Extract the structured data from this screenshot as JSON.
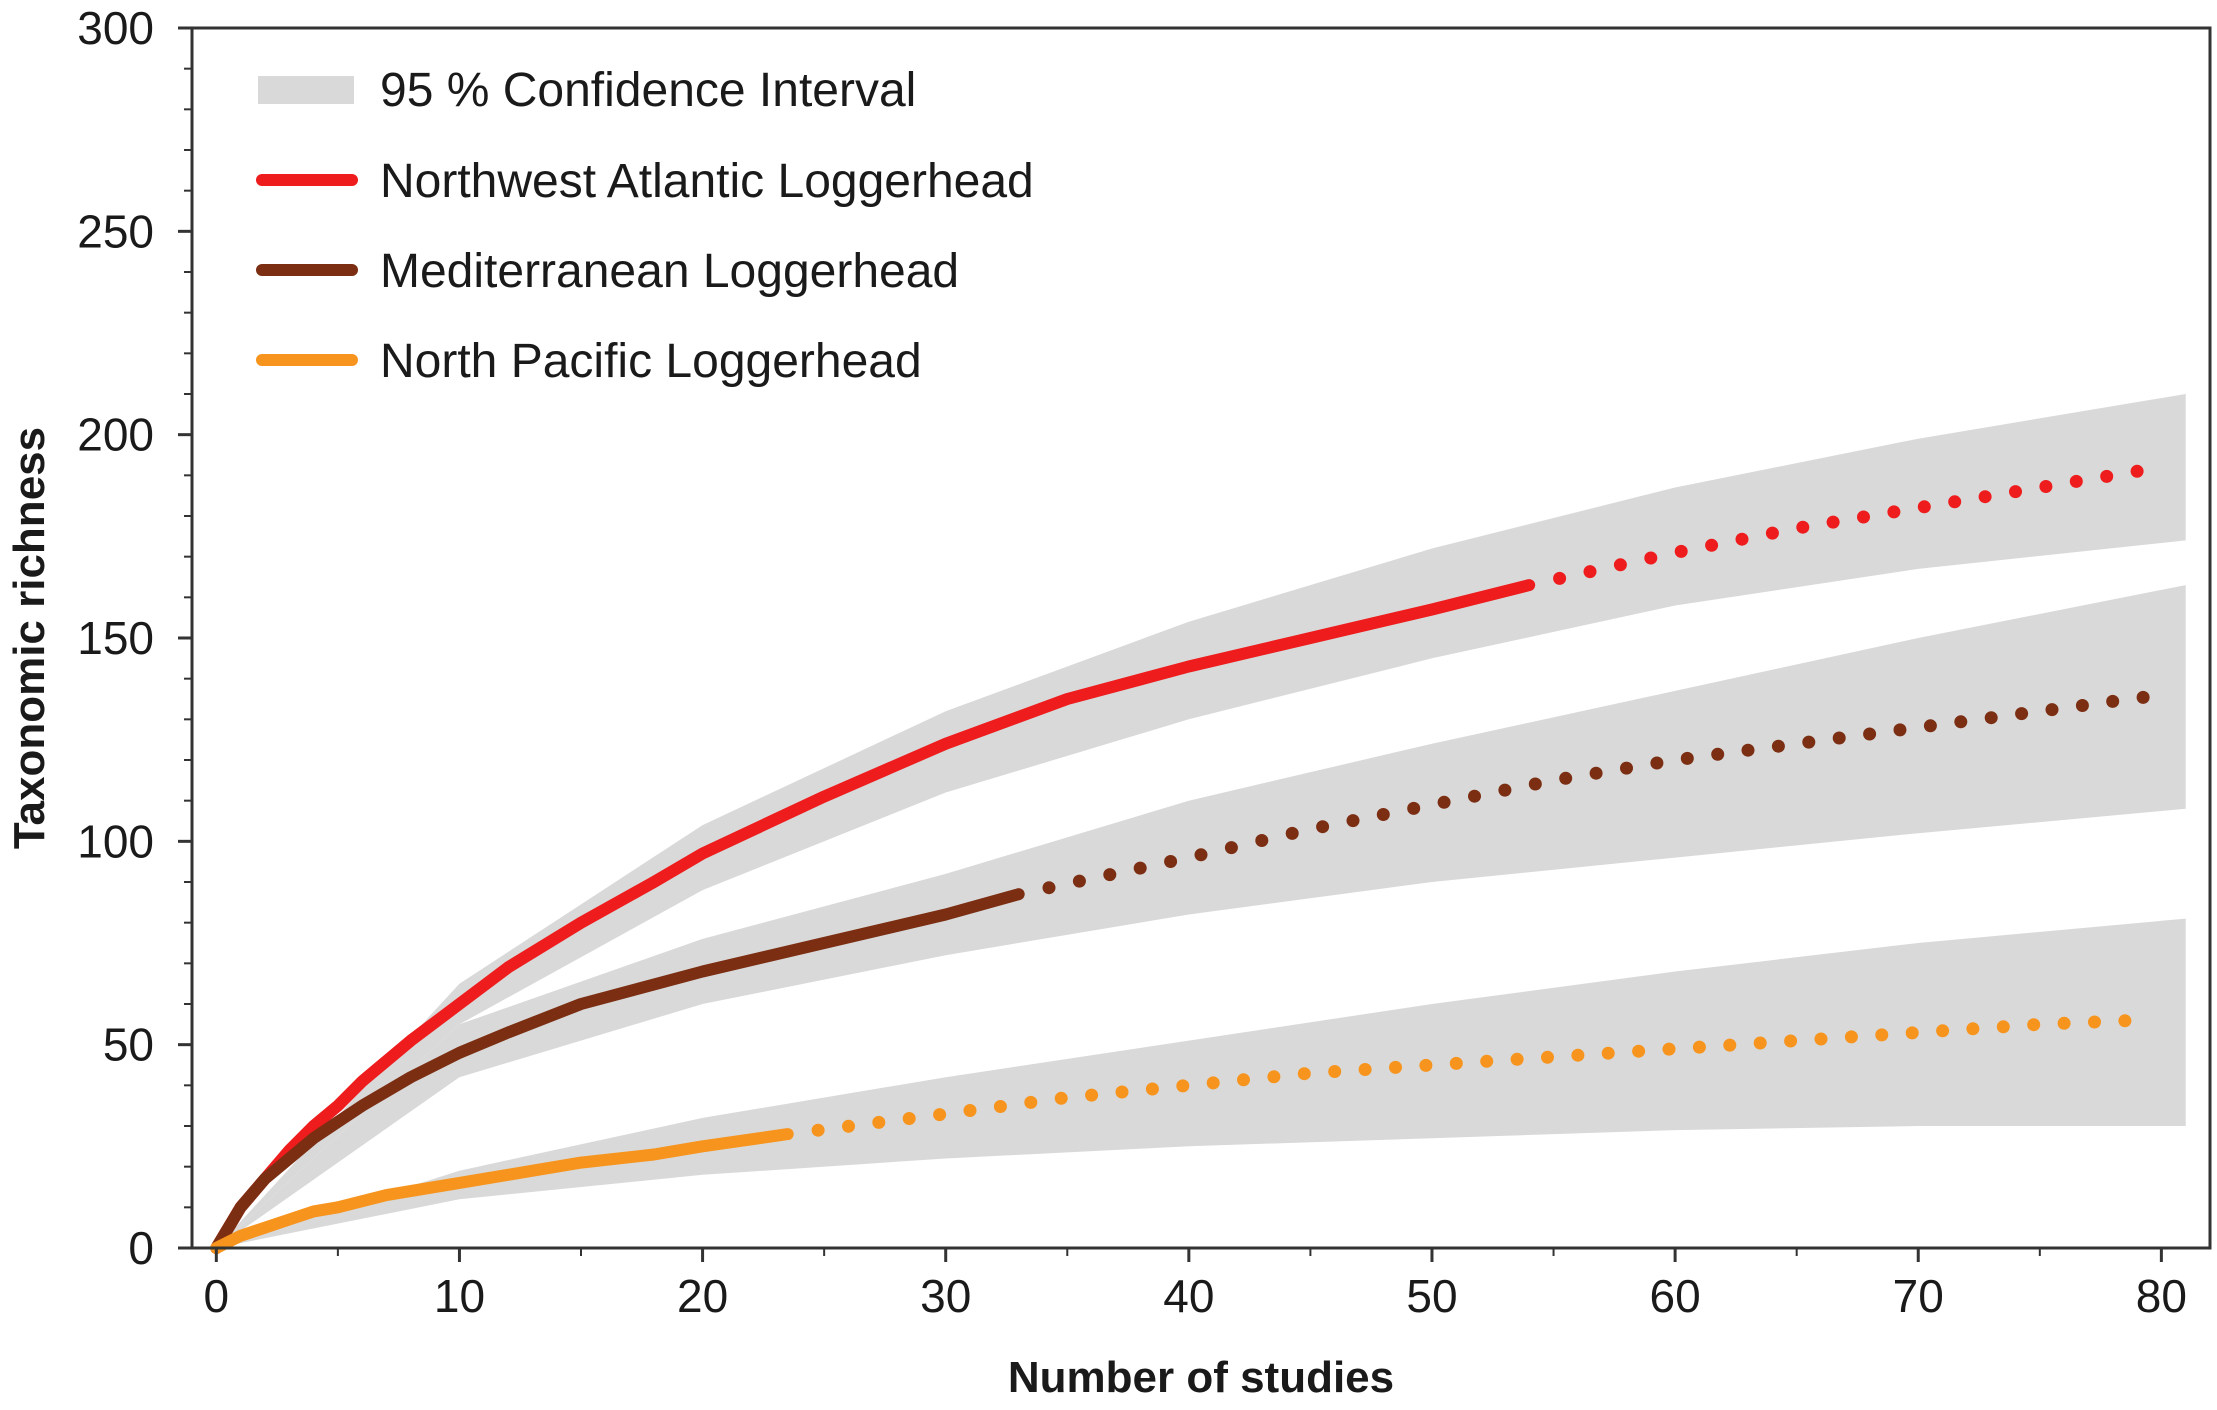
{
  "chart_data": {
    "type": "line",
    "xlabel": "Number of studies",
    "ylabel": "Taxonomic richness",
    "xlim": [
      -1,
      82
    ],
    "ylim": [
      0,
      300
    ],
    "x_ticks": [
      "0",
      "10",
      "20",
      "30",
      "40",
      "50",
      "60",
      "70",
      "80"
    ],
    "y_ticks": [
      "0",
      "50",
      "100",
      "150",
      "200",
      "250",
      "300"
    ],
    "legend_position": "top-left",
    "legend": {
      "ci_label": "95 % Confidence Interval",
      "ci_color": "#d9d9d9"
    },
    "series": [
      {
        "name": "Northwest Atlantic Loggerhead",
        "color": "#ee1c1c",
        "observed_max_x": 54,
        "x": [
          0,
          1,
          2,
          3,
          4,
          5,
          6,
          8,
          10,
          12,
          15,
          18,
          20,
          25,
          30,
          35,
          40,
          45,
          50,
          54,
          60,
          65,
          70,
          75,
          79
        ],
        "y": [
          0,
          10,
          17,
          24,
          30,
          35,
          41,
          51,
          60,
          69,
          80,
          90,
          97,
          111,
          124,
          135,
          143,
          150,
          157,
          163,
          171,
          177,
          182,
          187,
          191
        ],
        "ci_x": [
          0,
          10,
          20,
          30,
          40,
          50,
          60,
          70,
          81
        ],
        "ci_lower": [
          0,
          55,
          88,
          112,
          130,
          145,
          158,
          167,
          174
        ],
        "ci_upper": [
          0,
          65,
          104,
          132,
          154,
          172,
          187,
          199,
          210
        ]
      },
      {
        "name": "Mediterranean Loggerhead",
        "color": "#7b2e12",
        "observed_max_x": 33,
        "x": [
          0,
          1,
          2,
          3,
          4,
          5,
          6,
          8,
          10,
          12,
          15,
          20,
          25,
          30,
          33,
          40,
          45,
          50,
          55,
          60,
          65,
          70,
          75,
          80
        ],
        "y": [
          0,
          10,
          17,
          22,
          27,
          31,
          35,
          42,
          48,
          53,
          60,
          68,
          75,
          82,
          87,
          96,
          103,
          109,
          115,
          120,
          124,
          128,
          132,
          136
        ],
        "ci_x": [
          0,
          10,
          20,
          30,
          40,
          50,
          60,
          70,
          81
        ],
        "ci_lower": [
          0,
          42,
          60,
          72,
          82,
          90,
          96,
          102,
          108
        ],
        "ci_upper": [
          0,
          55,
          76,
          92,
          110,
          124,
          137,
          150,
          163
        ]
      },
      {
        "name": "North Pacific Loggerhead",
        "color": "#f7941d",
        "observed_max_x": 23.5,
        "x": [
          0,
          1,
          2,
          3,
          4,
          5,
          7,
          10,
          12,
          15,
          18,
          20,
          23.5,
          30,
          35,
          40,
          45,
          50,
          55,
          60,
          65,
          70,
          75,
          79
        ],
        "y": [
          0,
          3,
          5,
          7,
          9,
          10,
          13,
          16,
          18,
          21,
          23,
          25,
          28,
          33,
          37,
          40,
          43,
          45,
          47,
          49,
          51,
          53,
          55,
          56
        ],
        "ci_x": [
          0,
          10,
          20,
          30,
          40,
          50,
          60,
          70,
          81
        ],
        "ci_lower": [
          0,
          12,
          18,
          22,
          25,
          27,
          29,
          30,
          30
        ],
        "ci_upper": [
          0,
          19,
          32,
          42,
          51,
          60,
          68,
          75,
          81
        ]
      }
    ]
  }
}
